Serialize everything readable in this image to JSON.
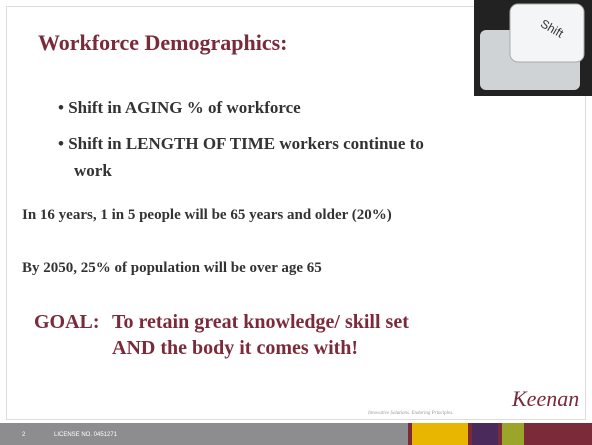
{
  "header": {
    "title": "Workforce Demographics:"
  },
  "key_label": "Shift",
  "bullets": [
    "Shift in AGING % of workforce",
    "Shift in LENGTH OF TIME workers continue to work"
  ],
  "statements": [
    "In 16 years, 1 in 5 people will be 65 years and older (20%)",
    "By 2050, 25% of population will be over age 65"
  ],
  "goal": {
    "label": "GOAL:",
    "lines": [
      "To retain great knowledge/ skill set",
      "AND the body it comes with!"
    ]
  },
  "logo": {
    "name": "Keenan",
    "tagline": "Innovative Solutions. Enduring Principles."
  },
  "footer": {
    "page": "2",
    "license": "LICENSE NO. 0451271"
  }
}
